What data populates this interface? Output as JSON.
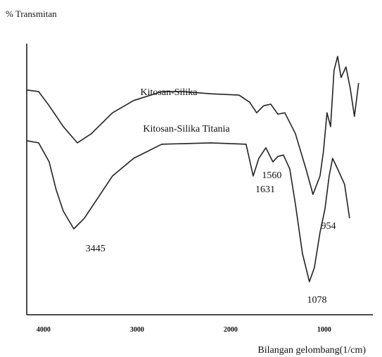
{
  "chart_data": {
    "type": "line",
    "y_label": "% Transmitan",
    "x_label": "Bilangan gelombang(1/cm)",
    "xlim": [
      4180,
      480
    ],
    "ylim": [
      0,
      100
    ],
    "xticks": [
      4000,
      3000,
      2000,
      1000
    ],
    "series": [
      {
        "name": "Kitosan-Silika",
        "color": "#222222",
        "x": [
          4180,
          4053,
          3940,
          3789,
          3639,
          3489,
          3263,
          3038,
          2737,
          2511,
          2211,
          1910,
          1797,
          1722,
          1647,
          1571,
          1496,
          1421,
          1308,
          1195,
          1120,
          1045,
          1008,
          970,
          932,
          895,
          857,
          820,
          767,
          722,
          677,
          632
        ],
        "values": [
          82.9,
          82.3,
          77.1,
          69.4,
          63.4,
          66.8,
          74.5,
          79.0,
          82.3,
          82.3,
          81.5,
          81.0,
          78.4,
          74.5,
          77.1,
          77.7,
          74.0,
          74.5,
          66.8,
          53.8,
          44.4,
          51.2,
          60.3,
          74.5,
          69.4,
          90.1,
          95.3,
          87.5,
          91.4,
          83.6,
          73.2,
          85.5
        ]
      },
      {
        "name": "Kitosan-Silika Titania",
        "color": "#222222",
        "x": [
          4180,
          4053,
          3940,
          3865,
          3789,
          3677,
          3564,
          3414,
          3263,
          3038,
          2737,
          2211,
          1835,
          1759,
          1699,
          1624,
          1549,
          1496,
          1436,
          1368,
          1308,
          1233,
          1158,
          1105,
          1045,
          992,
          947,
          910,
          857,
          782,
          729
        ],
        "values": [
          64.2,
          63.4,
          56.4,
          46.0,
          38.2,
          31.7,
          35.6,
          43.4,
          51.2,
          57.7,
          62.9,
          63.4,
          62.9,
          51.2,
          57.7,
          61.6,
          56.4,
          58.4,
          58.9,
          53.8,
          40.8,
          22.6,
          12.2,
          17.4,
          30.4,
          39.0,
          51.2,
          57.7,
          53.8,
          48.1,
          35.6
        ]
      }
    ],
    "annotations": [
      {
        "x": 3445,
        "y": 24.7
      },
      {
        "x": 1631,
        "y": 46.5
      },
      {
        "x": 1560,
        "y": 51.7
      },
      {
        "x": 1078,
        "y": 5.7
      },
      {
        "x": 954,
        "y": 33.0
      }
    ]
  }
}
